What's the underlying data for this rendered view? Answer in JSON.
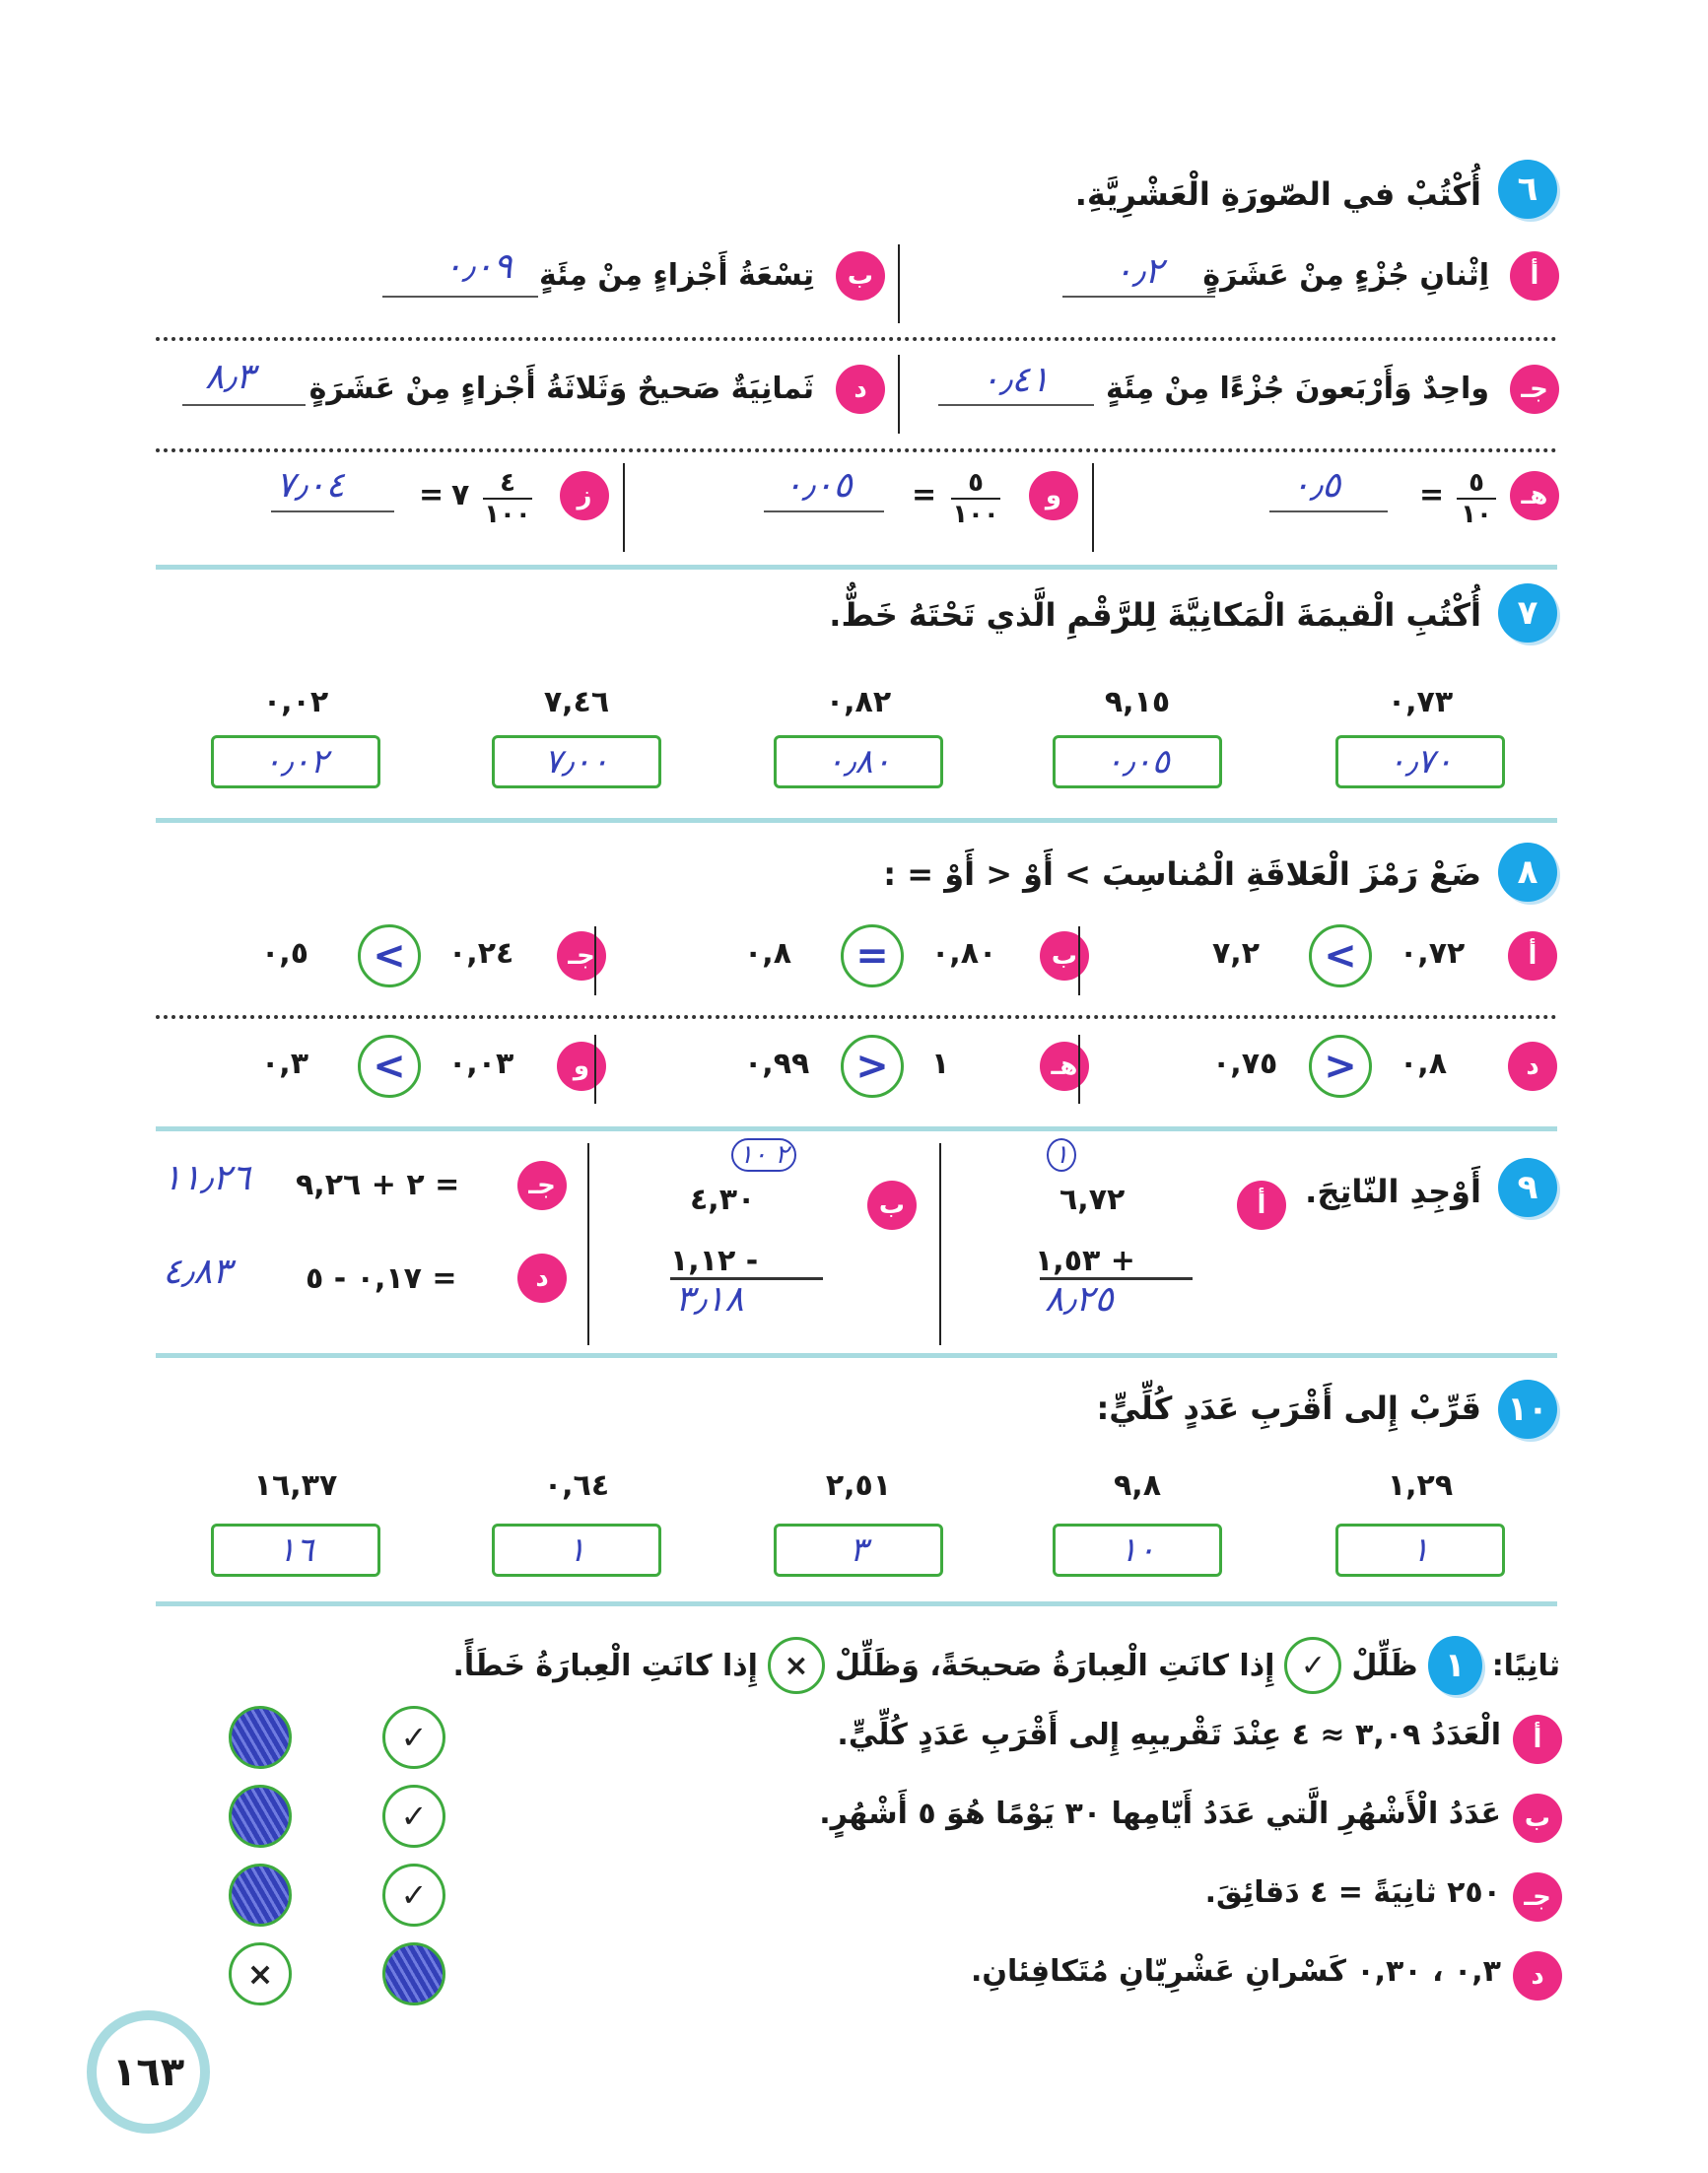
{
  "q6": {
    "num": "٦",
    "title": "أُكْتُبْ في الصّورَةِ الْعَشْرِيَّةِ.",
    "items": [
      {
        "label": "أ",
        "text": "اِثْنانِ جُزْءٍ مِنْ عَشَرَةٍ",
        "answer": "٠٫٢"
      },
      {
        "label": "ب",
        "text": "تِسْعَةُ أَجْزاءٍ مِنْ مِئَةٍ",
        "answer": "٠٫٠٩"
      },
      {
        "label": "جـ",
        "text": "واحِدٌ وَأَرْبَعونَ جُزْءًا مِنْ مِئَةٍ",
        "answer": "٠٫٤١"
      },
      {
        "label": "د",
        "text": "ثَمانِيَةٌ صَحيحٌ وَثَلاثَةُ أَجْزاءٍ مِنْ عَشَرَةٍ",
        "answer": "٨٫٣"
      },
      {
        "label": "هـ",
        "num": "٥",
        "den": "١٠",
        "prefix": "",
        "answer": "٠٫٥"
      },
      {
        "label": "و",
        "num": "٥",
        "den": "١٠٠",
        "prefix": "",
        "answer": "٠٫٠٥"
      },
      {
        "label": "ز",
        "num": "٤",
        "den": "١٠٠",
        "prefix": "٧",
        "answer": "٧٫٠٤"
      }
    ]
  },
  "q7": {
    "num": "٧",
    "title": "أُكْتُبِ الْقيمَةَ الْمَكانِيَّةَ لِلرَّقْمِ الَّذي تَحْتَهُ خَطٌّ.",
    "items": [
      {
        "number": "٠,٧٣",
        "answer": "٠٫٧٠"
      },
      {
        "number": "٩,١٥",
        "answer": "٠٫٠٥"
      },
      {
        "number": "٠,٨٢",
        "answer": "٠٫٨٠"
      },
      {
        "number": "٧,٤٦",
        "answer": "٧٫٠٠"
      },
      {
        "number": "٠,٠٢",
        "answer": "٠٫٠٢"
      }
    ]
  },
  "q8": {
    "num": "٨",
    "title": "ضَعْ رَمْزَ الْعَلاقَةِ الْمُناسِبَ > أَوْ < أَوْ = :",
    "items": [
      {
        "label": "أ",
        "left": "٠,٧٢",
        "right": "٧,٢",
        "answer": "<"
      },
      {
        "label": "ب",
        "left": "٠,٨٠",
        "right": "٠,٨",
        "answer": "="
      },
      {
        "label": "جـ",
        "left": "٠,٢٤",
        "right": "٠,٥",
        "answer": "<"
      },
      {
        "label": "د",
        "left": "٠,٨",
        "right": "٠,٧٥",
        "answer": ">"
      },
      {
        "label": "هـ",
        "left": "١",
        "right": "٠,٩٩",
        "answer": ">"
      },
      {
        "label": "و",
        "left": "٠,٠٣",
        "right": "٠,٣",
        "answer": "<"
      }
    ]
  },
  "q9": {
    "num": "٩",
    "title": "أَوْجِدِ النّاتِجَ.",
    "a": {
      "label": "أ",
      "top": "٦,٧٢",
      "bottom": "+ ١,٥٣",
      "carry": "١",
      "answer": "٨٫٢٥"
    },
    "b": {
      "label": "ب",
      "top": "٤,٣٠",
      "bottom": "- ١,١٢",
      "carry": "٢ ١٠",
      "answer": "٣٫١٨"
    },
    "c": {
      "label": "جـ",
      "expr": "= ٢ + ٩,٢٦",
      "answer": "١١٫٢٦"
    },
    "d": {
      "label": "د",
      "expr": "= ٠,١٧ - ٥",
      "answer": "٤٫٨٣"
    }
  },
  "q10": {
    "num": "١٠",
    "title": "قَرِّبْ إِلى أَقْرَبِ عَدَدٍ كُلِّيٍّ:",
    "items": [
      {
        "number": "١,٢٩",
        "answer": "١"
      },
      {
        "number": "٩,٨",
        "answer": "١٠"
      },
      {
        "number": "٢,٥١",
        "answer": "٣"
      },
      {
        "number": "٠,٦٤",
        "answer": "١"
      },
      {
        "number": "١٦,٣٧",
        "answer": "١٦"
      }
    ]
  },
  "part2": {
    "prefix": "ثانِيًا:",
    "num": "١",
    "t1": "ظَلِّلْ",
    "t2": "إِذا كانَتِ الْعِبارَةُ صَحيحَةً، وَظَلِّلْ",
    "t3": "إِذا كانَتِ الْعِبارَةُ خَطَأً.",
    "check": "✓",
    "cross": "×",
    "items": [
      {
        "label": "أ",
        "text": "الْعَدَدُ ٣,٠٩ ≈ ٤ عِنْدَ تَقْريبِهِ إِلى أَقْرَبِ عَدَدٍ كُلِّيٍّ.",
        "shaded": "false"
      },
      {
        "label": "ب",
        "text": "عَدَدُ الْأَشْهُرِ الَّتي عَدَدُ أَيّامِها ٣٠ يَوْمًا هُوَ ٥ أَشْهُرٍ.",
        "shaded": "false"
      },
      {
        "label": "جـ",
        "text": "٢٥٠ ثانِيَةً = ٤ دَقائِقَ.",
        "shaded": "false"
      },
      {
        "label": "د",
        "text": "٠,٣ ، ٠,٣٠ كَسْرانِ عَشْرِيّانِ مُتَكافِئانِ.",
        "shaded": "true"
      }
    ]
  },
  "page_number": "١٦٣",
  "colors": {
    "question": "#1ba6e8",
    "label": "#ec2a84",
    "answer": "#3340b8",
    "box": "#3eaa3e",
    "divider": "#a8dbe0"
  }
}
